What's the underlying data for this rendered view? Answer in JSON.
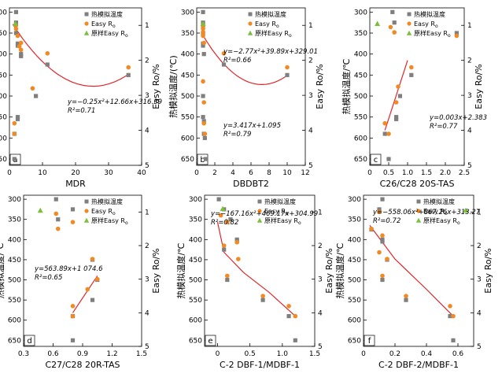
{
  "figure": {
    "legend_labels": [
      "热模拟温度",
      "Easy R",
      "原样Easy R"
    ],
    "legend_subscripts": [
      "",
      "o",
      "o"
    ]
  },
  "colors": {
    "temperature_marker": "#7f7f7f",
    "easyro_marker": "#f08a24",
    "original_marker": "#7bbf3a",
    "fit_curve": "#e0262b",
    "axis": "#000000"
  },
  "chart_data": [
    {
      "panel_label": "a",
      "type": "scatter",
      "xlabel": "MDR",
      "xticks": [
        "0",
        "10",
        "20",
        "30",
        "40"
      ],
      "xlim": [
        0,
        40
      ],
      "y_left_label": "热模拟温度/℃",
      "y_left_ticks": [
        "300",
        "350",
        "400",
        "450",
        "500",
        "550",
        "600",
        "650"
      ],
      "y_left_lim": [
        290,
        665
      ],
      "y_right_label": "Easy Ro/%",
      "y_right_ticks": [
        "1",
        "2",
        "3",
        "4",
        "5"
      ],
      "y_right_lim": [
        0.5,
        5
      ],
      "legend": "top-right",
      "equation": "y=−0.25x²+12.66x+316.39",
      "r2": "R²=0.71",
      "temperature": [
        [
          2,
          300
        ],
        [
          2,
          325
        ],
        [
          2,
          350
        ],
        [
          2.5,
          375
        ],
        [
          2.5,
          380
        ],
        [
          3.5,
          400
        ],
        [
          3.5,
          405
        ],
        [
          8,
          500
        ],
        [
          2.5,
          550
        ],
        [
          2.5,
          555
        ],
        [
          1.5,
          590
        ],
        [
          1.5,
          650
        ],
        [
          11.5,
          425
        ],
        [
          36,
          450
        ]
      ],
      "easy_ro": [
        [
          2,
          1.0
        ],
        [
          2,
          1.1
        ],
        [
          2.5,
          1.3
        ],
        [
          3.5,
          1.5
        ],
        [
          3,
          1.6
        ],
        [
          3.5,
          1.7
        ],
        [
          7,
          2.8
        ],
        [
          1.5,
          3.8
        ],
        [
          1.5,
          4.1
        ],
        [
          11.5,
          1.8
        ],
        [
          36,
          2.2
        ]
      ],
      "original_easy_ro": [
        [
          1.8,
          0.95
        ]
      ],
      "fit": {
        "a": -0.25,
        "b": 12.66,
        "c": 316.39,
        "x_range": [
          1,
          36
        ]
      }
    },
    {
      "panel_label": "b",
      "type": "scatter",
      "xlabel": "DBDBT2",
      "xticks": [
        "0",
        "2",
        "4",
        "6",
        "8",
        "10",
        "12"
      ],
      "xlim": [
        0,
        12
      ],
      "y_left_label": "热模拟温度/(℃)",
      "y_left_ticks": [
        "300",
        "350",
        "400",
        "450",
        "500",
        "550",
        "600",
        "650"
      ],
      "y_left_lim": [
        290,
        665
      ],
      "y_right_label": "Easy Ro/%",
      "y_right_ticks": [
        "1",
        "2",
        "3",
        "4",
        "5"
      ],
      "y_right_lim": [
        0.5,
        5
      ],
      "legend": "top-right",
      "equation": "y=−2.77x²+39.89x+329.01",
      "r2": "R²=0.66",
      "equation2": "y=3.417x+1.095",
      "r2_2": "R²=0.79",
      "temperature": [
        [
          0.7,
          300
        ],
        [
          0.7,
          325
        ],
        [
          0.7,
          330
        ],
        [
          0.7,
          350
        ],
        [
          0.7,
          375
        ],
        [
          0.7,
          380
        ],
        [
          0.8,
          400
        ],
        [
          0.7,
          500
        ],
        [
          0.7,
          550
        ],
        [
          0.8,
          560
        ],
        [
          0.8,
          590
        ],
        [
          0.9,
          600
        ],
        [
          1.0,
          650
        ],
        [
          3,
          425
        ],
        [
          10,
          450
        ]
      ],
      "easy_ro": [
        [
          0.7,
          1.0
        ],
        [
          0.7,
          1.05
        ],
        [
          0.7,
          1.1
        ],
        [
          0.7,
          1.2
        ],
        [
          0.7,
          1.3
        ],
        [
          0.8,
          1.5
        ],
        [
          0.7,
          2.6
        ],
        [
          0.8,
          3.2
        ],
        [
          0.8,
          3.8
        ],
        [
          0.9,
          4.1
        ],
        [
          3,
          1.8
        ],
        [
          10,
          2.2
        ]
      ],
      "original_easy_ro": [
        [
          0.7,
          0.95
        ]
      ],
      "fit": {
        "a": -2.77,
        "b": 39.89,
        "c": 329.01,
        "x_range": [
          0.7,
          10
        ]
      }
    },
    {
      "panel_label": "c",
      "type": "scatter",
      "xlabel": "C26/C28 20S-TAS",
      "xticks": [
        "0",
        "0.5",
        "1.0",
        "1.5",
        "2.0",
        "2.5"
      ],
      "xlim": [
        0,
        2.5
      ],
      "y_left_label": "热模拟温度/℃",
      "y_left_ticks": [
        "300",
        "350",
        "400",
        "450",
        "500",
        "550",
        "600",
        "650"
      ],
      "y_left_lim": [
        290,
        665
      ],
      "y_right_label": "Easy Ro/%",
      "y_right_ticks": [
        "1",
        "2",
        "3",
        "4",
        "5"
      ],
      "y_right_lim": [
        0.5,
        5
      ],
      "legend": "top-right",
      "equation": "y=0.003x+2.383",
      "r2": "R²=0.77",
      "temperature": [
        [
          0.6,
          300
        ],
        [
          0.65,
          325
        ],
        [
          0.8,
          500
        ],
        [
          0.7,
          550
        ],
        [
          0.7,
          555
        ],
        [
          0.4,
          590
        ],
        [
          0.5,
          650
        ],
        [
          1.1,
          450
        ],
        [
          2.3,
          350
        ]
      ],
      "easy_ro": [
        [
          0.55,
          1.05
        ],
        [
          0.65,
          1.2
        ],
        [
          0.75,
          2.75
        ],
        [
          0.7,
          3.2
        ],
        [
          0.4,
          3.8
        ],
        [
          0.5,
          4.1
        ],
        [
          1.1,
          2.2
        ],
        [
          2.3,
          1.3
        ]
      ],
      "original_easy_ro": [
        [
          0.2,
          0.95
        ]
      ],
      "fit": {
        "line": [
          [
            0.4,
            4.0
          ],
          [
            1.0,
            2.0
          ]
        ]
      }
    },
    {
      "panel_label": "d",
      "type": "scatter",
      "xlabel": "C27/C28 20R-TAS",
      "xticks": [
        "0.3",
        "0.6",
        "0.9",
        "1.2",
        "1.5"
      ],
      "xlim": [
        0.3,
        1.5
      ],
      "y_left_label": "热模拟温度/℃",
      "y_left_ticks": [
        "300",
        "350",
        "400",
        "450",
        "500",
        "550",
        "600",
        "650"
      ],
      "y_left_lim": [
        290,
        665
      ],
      "y_right_label": "Easy Ro/%",
      "y_right_ticks": [
        "1",
        "2",
        "3",
        "4",
        "5"
      ],
      "y_right_lim": [
        0.5,
        5
      ],
      "legend": "top-right",
      "equation": "y=563.89x+1 074.6",
      "r2": "R²=0.65",
      "temperature": [
        [
          0.63,
          300
        ],
        [
          0.8,
          325
        ],
        [
          0.65,
          350
        ],
        [
          1.0,
          450
        ],
        [
          1.0,
          550
        ],
        [
          1.05,
          500
        ],
        [
          0.8,
          590
        ],
        [
          0.8,
          650
        ]
      ],
      "easy_ro": [
        [
          0.63,
          1.05
        ],
        [
          0.8,
          1.3
        ],
        [
          0.65,
          1.5
        ],
        [
          1.0,
          2.4
        ],
        [
          1.05,
          3.0
        ],
        [
          0.95,
          3.3
        ],
        [
          0.8,
          3.8
        ],
        [
          0.8,
          4.1
        ]
      ],
      "original_easy_ro": [
        [
          0.47,
          0.95
        ]
      ],
      "fit": {
        "line": [
          [
            0.8,
            4.0
          ],
          [
            1.05,
            2.9
          ]
        ]
      }
    },
    {
      "panel_label": "e",
      "type": "scatter",
      "xlabel": "C-2 DBF-1/MDBF-1",
      "xticks": [
        "0",
        "0.5",
        "1.0",
        "1.5"
      ],
      "xlim": [
        -0.2,
        1.5
      ],
      "y_left_label": "热模拟温度/℃",
      "y_left_ticks": [
        "300",
        "350",
        "400",
        "450",
        "500",
        "550",
        "600",
        "650"
      ],
      "y_left_lim": [
        290,
        665
      ],
      "y_right_label": "Easy Ro/%",
      "y_right_ticks": [
        "1",
        "2",
        "3",
        "4",
        "5"
      ],
      "y_right_lim": [
        0.5,
        5
      ],
      "legend": "top-right",
      "equation": "y=−167.16x²+469.17x+304.99",
      "r2": "R²=0.82",
      "temperature": [
        [
          0.02,
          300
        ],
        [
          0.1,
          325
        ],
        [
          0.2,
          350
        ],
        [
          0.3,
          400
        ],
        [
          0.3,
          405
        ],
        [
          0.1,
          425
        ],
        [
          0.15,
          500
        ],
        [
          0.7,
          550
        ],
        [
          1.1,
          590
        ],
        [
          1.2,
          650
        ]
      ],
      "easy_ro": [
        [
          0.05,
          1.1
        ],
        [
          0.15,
          1.3
        ],
        [
          0.1,
          2.0
        ],
        [
          0.3,
          1.9
        ],
        [
          0.32,
          2.4
        ],
        [
          0.15,
          2.9
        ],
        [
          0.7,
          3.5
        ],
        [
          1.1,
          3.8
        ],
        [
          1.2,
          4.1
        ]
      ],
      "original_easy_ro": [
        [
          0.08,
          0.9
        ]
      ],
      "fit": {
        "line": [
          [
            0.0,
            1.3
          ],
          [
            0.1,
            2.2
          ],
          [
            0.4,
            2.8
          ],
          [
            0.8,
            3.4
          ],
          [
            1.2,
            4.1
          ]
        ]
      }
    },
    {
      "panel_label": "f",
      "type": "scatter",
      "xlabel": "C-2 DBF-2/MDBF-1",
      "xticks": [
        "0",
        "0.2",
        "0.4",
        "0.6"
      ],
      "xlim": [
        0,
        0.7
      ],
      "y_left_label": "热模拟温度/℃",
      "y_left_ticks": [
        "300",
        "350",
        "400",
        "450",
        "500",
        "550",
        "600",
        "650"
      ],
      "y_left_lim": [
        290,
        665
      ],
      "y_right_label": "Easy Ro/%",
      "y_right_ticks": [
        "1",
        "2",
        "3",
        "4",
        "5"
      ],
      "y_right_lim": [
        0.5,
        5
      ],
      "legend": "top-right",
      "equation": "y=−558.06x²+867.26x+313.27",
      "r2": "R²=0.72",
      "temperature": [
        [
          0.12,
          300
        ],
        [
          0.1,
          325
        ],
        [
          0.05,
          375
        ],
        [
          0.12,
          400
        ],
        [
          0.12,
          405
        ],
        [
          0.15,
          450
        ],
        [
          0.12,
          500
        ],
        [
          0.27,
          550
        ],
        [
          0.55,
          590
        ],
        [
          0.57,
          650
        ]
      ],
      "easy_ro": [
        [
          0.1,
          1.0
        ],
        [
          0.05,
          1.5
        ],
        [
          0.12,
          1.7
        ],
        [
          0.1,
          2.2
        ],
        [
          0.15,
          2.4
        ],
        [
          0.12,
          2.9
        ],
        [
          0.27,
          3.5
        ],
        [
          0.55,
          3.8
        ],
        [
          0.57,
          4.1
        ]
      ],
      "original_easy_ro": [
        [
          0.65,
          0.95
        ]
      ],
      "fit": {
        "line": [
          [
            0.04,
            1.4
          ],
          [
            0.2,
            2.4
          ],
          [
            0.4,
            3.3
          ],
          [
            0.57,
            4.1
          ]
        ]
      }
    }
  ]
}
